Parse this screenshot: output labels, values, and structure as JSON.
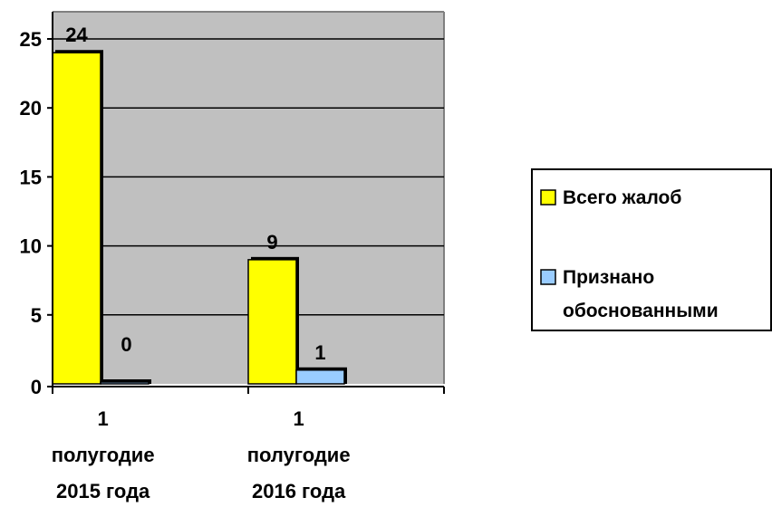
{
  "chart_data": {
    "type": "bar",
    "categories": [
      [
        "1",
        "полугодие",
        "2015 года"
      ],
      [
        "1",
        "полугодие",
        "2016 года"
      ]
    ],
    "series": [
      {
        "name": "Всего жалоб",
        "values": [
          24,
          9
        ],
        "color": "#ffff00"
      },
      {
        "name": "Признано обоснованными",
        "values": [
          0,
          1
        ],
        "color": "#99ccff"
      }
    ],
    "legend_lines": [
      [
        "Всего жалоб"
      ],
      [
        "Признано",
        "обоснованными"
      ]
    ],
    "ylim": [
      0,
      25
    ],
    "yticks": [
      "0",
      "5",
      "10",
      "15",
      "20",
      "25"
    ],
    "grid": true,
    "plot_background": "#c0c0c0",
    "legend_position": "right"
  }
}
